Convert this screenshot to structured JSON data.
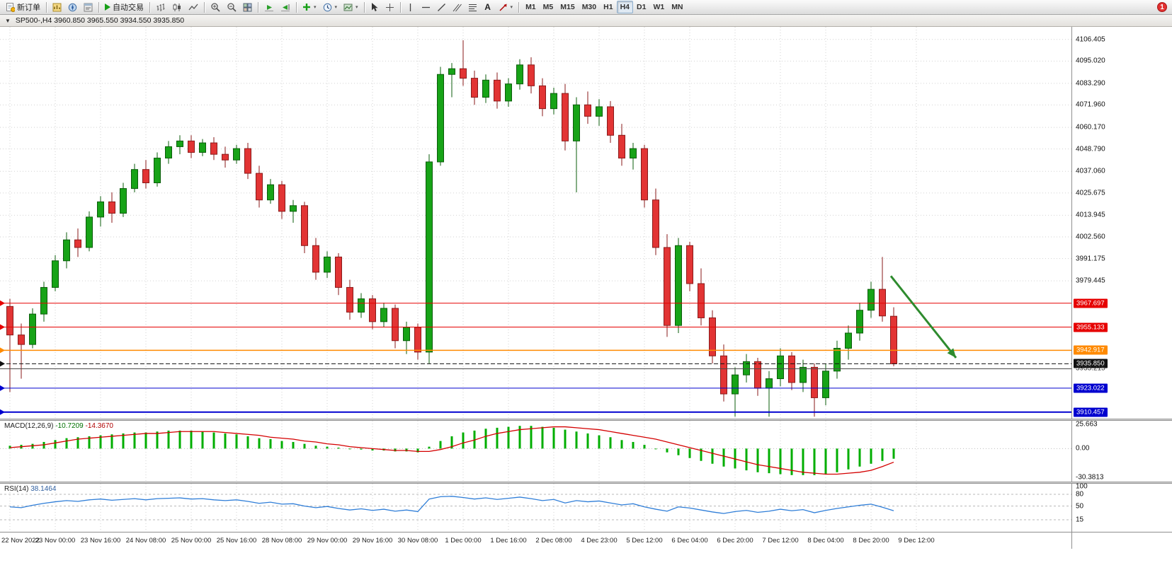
{
  "toolbar": {
    "new_order": "新订单",
    "auto_trading": "自动交易",
    "timeframes": [
      "M1",
      "M5",
      "M15",
      "M30",
      "H1",
      "H4",
      "D1",
      "W1",
      "MN"
    ],
    "active_timeframe": "H4",
    "notification_badge": "1",
    "icon_glyphs": {
      "dropdown": "▾",
      "collapse": "▼",
      "text_tool": "A"
    },
    "icon_names": [
      "new-order-icon",
      "market-watch-icon",
      "navigator-icon",
      "terminal-icon",
      "autotrading-play-icon",
      "bar-chart-icon",
      "candlestick-icon",
      "line-chart-icon",
      "zoom-in-icon",
      "zoom-out-icon",
      "tile-windows-icon",
      "auto-scroll-icon",
      "chart-shift-icon",
      "indicators-plus-icon",
      "periods-clock-icon",
      "templates-icon",
      "cursor-icon",
      "crosshair-icon",
      "vertical-line-icon",
      "horizontal-line-icon",
      "trendline-icon",
      "channel-icon",
      "fibonacci-icon",
      "text-tool-icon",
      "arrows-tool-icon"
    ]
  },
  "chart_header": {
    "collapse_icon": "▼",
    "title": "SP500-,H4 3960.850 3965.550 3934.550 3935.850"
  },
  "price_axis_labels": [
    "4106.405",
    "4095.020",
    "4083.290",
    "4071.960",
    "4060.170",
    "4048.790",
    "4037.060",
    "4025.675",
    "4013.945",
    "4002.560",
    "3991.175",
    "3979.445"
  ],
  "levels": [
    {
      "id": "resistance-upper",
      "price": 3967.697,
      "label": "3967.697",
      "color": "#e60000",
      "style": "solid",
      "width": 1,
      "badge": "filled",
      "edge_mark": true
    },
    {
      "id": "resistance-lower",
      "price": 3955.133,
      "label": "3955.133",
      "color": "#e60000",
      "style": "solid",
      "width": 1,
      "badge": "filled",
      "edge_mark": true
    },
    {
      "id": "orange-level",
      "price": 3942.917,
      "label": "3942.917",
      "color": "#ff8a00",
      "style": "solid",
      "width": 1.5,
      "badge": "filled",
      "edge_mark": true
    },
    {
      "id": "bid",
      "price": 3935.85,
      "label": "3935.850",
      "color": "#111111",
      "style": "dash",
      "width": 1,
      "badge": "filled",
      "edge_mark": true
    },
    {
      "id": "gray-support",
      "price": 3933.215,
      "label": "3933.215",
      "color": "#4a4a4a",
      "style": "solid",
      "width": 1,
      "badge": "plain",
      "edge_mark": false
    },
    {
      "id": "support-upper",
      "price": 3923.022,
      "label": "3923.022",
      "color": "#0000cf",
      "style": "solid",
      "width": 1,
      "badge": "filled",
      "edge_mark": true
    },
    {
      "id": "support-lower",
      "price": 3910.457,
      "label": "3910.457",
      "color": "#0000cf",
      "style": "solid",
      "width": 2,
      "badge": "filled",
      "edge_mark": true
    }
  ],
  "time_axis_labels": [
    "22 Nov 2022",
    "23 Nov 00:00",
    "23 Nov 16:00",
    "24 Nov 08:00",
    "25 Nov 00:00",
    "25 Nov 16:00",
    "28 Nov 08:00",
    "29 Nov 00:00",
    "29 Nov 16:00",
    "30 Nov 08:00",
    "1 Dec 00:00",
    "1 Dec 16:00",
    "2 Dec 08:00",
    "4 Dec 23:00",
    "5 Dec 12:00",
    "6 Dec 04:00",
    "6 Dec 20:00",
    "7 Dec 12:00",
    "8 Dec 04:00",
    "8 Dec 20:00",
    "9 Dec 12:00"
  ],
  "macd": {
    "label": "MACD(12,26,9)",
    "value_main": "-10.7209",
    "value_signal": "-14.3670",
    "scale": [
      "25.663",
      "0.00",
      "-30.3813"
    ]
  },
  "rsi": {
    "label": "RSI(14)",
    "value": "38.1464",
    "scale": [
      "100",
      "80",
      "50",
      "15"
    ]
  },
  "colors": {
    "candle_up": "#17a317",
    "candle_up_border": "#0b5d0b",
    "candle_down": "#e23434",
    "candle_down_border": "#8a1a1a",
    "grid": "#d2d2d2",
    "macd_histogram": "#00ae00",
    "macd_signal": "#d40000",
    "rsi_line": "#2f7ed8",
    "axis_text": "#111111",
    "background": "#ffffff"
  },
  "chart_data": {
    "type": "candlestick",
    "title": "SP500-,H4",
    "symbol": "SP500-",
    "timeframe": "H4",
    "current_quote": {
      "open": 3960.85,
      "high": 3965.55,
      "low": 3934.55,
      "close": 3935.85
    },
    "price_range": [
      3907,
      4113
    ],
    "ohlc": [
      [
        3966,
        3970,
        3921,
        3951
      ],
      [
        3951,
        3957,
        3928,
        3946
      ],
      [
        3946,
        3965,
        3944,
        3962
      ],
      [
        3962,
        3979,
        3958,
        3976
      ],
      [
        3976,
        3993,
        3974,
        3990
      ],
      [
        3990,
        4005,
        3986,
        4001
      ],
      [
        4001,
        4007,
        3992,
        3997
      ],
      [
        3997,
        4016,
        3995,
        4013
      ],
      [
        4013,
        4024,
        4008,
        4021
      ],
      [
        4021,
        4026,
        4010,
        4015
      ],
      [
        4015,
        4031,
        4013,
        4028
      ],
      [
        4028,
        4041,
        4026,
        4038
      ],
      [
        4038,
        4043,
        4028,
        4031
      ],
      [
        4031,
        4047,
        4029,
        4044
      ],
      [
        4044,
        4053,
        4041,
        4050
      ],
      [
        4050,
        4056,
        4046,
        4053
      ],
      [
        4053,
        4056,
        4044,
        4047
      ],
      [
        4047,
        4054,
        4045,
        4052
      ],
      [
        4052,
        4055,
        4043,
        4046
      ],
      [
        4046,
        4050,
        4039,
        4043
      ],
      [
        4043,
        4051,
        4041,
        4049
      ],
      [
        4049,
        4052,
        4033,
        4036
      ],
      [
        4036,
        4040,
        4018,
        4022
      ],
      [
        4022,
        4033,
        4020,
        4030
      ],
      [
        4030,
        4032,
        4012,
        4016
      ],
      [
        4016,
        4022,
        4010,
        4019
      ],
      [
        4019,
        4021,
        3994,
        3998
      ],
      [
        3998,
        4002,
        3980,
        3984
      ],
      [
        3984,
        3995,
        3981,
        3992
      ],
      [
        3992,
        3994,
        3972,
        3976
      ],
      [
        3976,
        3980,
        3959,
        3963
      ],
      [
        3963,
        3973,
        3960,
        3970
      ],
      [
        3970,
        3972,
        3954,
        3958
      ],
      [
        3958,
        3968,
        3955,
        3965
      ],
      [
        3965,
        3967,
        3944,
        3948
      ],
      [
        3948,
        3958,
        3941,
        3955
      ],
      [
        3955,
        3957,
        3938,
        3942
      ],
      [
        3942,
        4046,
        3936,
        4042
      ],
      [
        4042,
        4092,
        4040,
        4088
      ],
      [
        4088,
        4094,
        4076,
        4091
      ],
      [
        4091,
        4106,
        4082,
        4086
      ],
      [
        4086,
        4090,
        4072,
        4076
      ],
      [
        4076,
        4088,
        4073,
        4085
      ],
      [
        4085,
        4089,
        4070,
        4074
      ],
      [
        4074,
        4086,
        4071,
        4083
      ],
      [
        4083,
        4096,
        4080,
        4093
      ],
      [
        4093,
        4097,
        4078,
        4082
      ],
      [
        4082,
        4086,
        4066,
        4070
      ],
      [
        4070,
        4081,
        4067,
        4078
      ],
      [
        4078,
        4083,
        4048,
        4053
      ],
      [
        4053,
        4076,
        4026,
        4072
      ],
      [
        4072,
        4079,
        4062,
        4066
      ],
      [
        4066,
        4075,
        4061,
        4071
      ],
      [
        4071,
        4074,
        4052,
        4056
      ],
      [
        4056,
        4062,
        4040,
        4044
      ],
      [
        4044,
        4052,
        4038,
        4049
      ],
      [
        4049,
        4051,
        4018,
        4022
      ],
      [
        4022,
        4028,
        3993,
        3997
      ],
      [
        3997,
        4004,
        3950,
        3956
      ],
      [
        3956,
        4002,
        3952,
        3998
      ],
      [
        3998,
        4000,
        3974,
        3978
      ],
      [
        3978,
        3986,
        3956,
        3960
      ],
      [
        3960,
        3964,
        3936,
        3940
      ],
      [
        3940,
        3946,
        3916,
        3920
      ],
      [
        3920,
        3934,
        3908,
        3930
      ],
      [
        3930,
        3941,
        3926,
        3937
      ],
      [
        3937,
        3939,
        3919,
        3923
      ],
      [
        3923,
        3932,
        3908,
        3928
      ],
      [
        3928,
        3944,
        3924,
        3940
      ],
      [
        3940,
        3942,
        3922,
        3926
      ],
      [
        3926,
        3938,
        3921,
        3934
      ],
      [
        3934,
        3936,
        3908,
        3918
      ],
      [
        3918,
        3936,
        3914,
        3932
      ],
      [
        3932,
        3948,
        3928,
        3944
      ],
      [
        3944,
        3956,
        3938,
        3952
      ],
      [
        3952,
        3968,
        3948,
        3964
      ],
      [
        3964,
        3979,
        3960,
        3975
      ],
      [
        3975,
        3992,
        3958,
        3961
      ],
      [
        3960.85,
        3965.55,
        3934.55,
        3935.85
      ]
    ],
    "macd_histogram": [
      3,
      4,
      5,
      7,
      9,
      11,
      12,
      13,
      14,
      15,
      16,
      17,
      17,
      18,
      19,
      19,
      19,
      18,
      17,
      16,
      15,
      13,
      11,
      10,
      8,
      7,
      5,
      3,
      2,
      1,
      0,
      -1,
      -2,
      -2,
      -3,
      -3,
      -4,
      2,
      8,
      13,
      17,
      19,
      21,
      22,
      23,
      24,
      24,
      23,
      22,
      20,
      18,
      16,
      14,
      12,
      9,
      7,
      4,
      0,
      -4,
      -7,
      -10,
      -13,
      -16,
      -19,
      -21,
      -23,
      -25,
      -26,
      -27,
      -28,
      -28,
      -28,
      -27,
      -25,
      -22,
      -19,
      -16,
      -13,
      -10.72
    ],
    "macd_signal": [
      1,
      2,
      3,
      4,
      6,
      8,
      10,
      11,
      12,
      13,
      14,
      15,
      16,
      16,
      17,
      18,
      18,
      18,
      18,
      17,
      16,
      15,
      14,
      12,
      11,
      10,
      8,
      7,
      5,
      4,
      2,
      1,
      0,
      -1,
      -2,
      -2,
      -3,
      -3,
      -1,
      2,
      6,
      9,
      13,
      16,
      18,
      20,
      21,
      22,
      23,
      23,
      22,
      21,
      20,
      18,
      16,
      14,
      12,
      10,
      7,
      4,
      1,
      -2,
      -5,
      -8,
      -11,
      -14,
      -17,
      -19,
      -21,
      -23,
      -25,
      -26,
      -27,
      -27,
      -26,
      -25,
      -23,
      -19,
      -14.37
    ],
    "rsi_values": [
      48,
      46,
      52,
      57,
      61,
      64,
      62,
      66,
      68,
      65,
      67,
      69,
      66,
      69,
      70,
      71,
      68,
      69,
      66,
      64,
      66,
      62,
      57,
      60,
      55,
      56,
      50,
      46,
      49,
      44,
      40,
      43,
      39,
      42,
      37,
      40,
      36,
      68,
      74,
      75,
      72,
      68,
      71,
      67,
      70,
      73,
      69,
      64,
      67,
      58,
      64,
      61,
      63,
      58,
      53,
      56,
      48,
      42,
      37,
      48,
      45,
      40,
      35,
      31,
      36,
      39,
      34,
      37,
      42,
      38,
      41,
      33,
      39,
      44,
      48,
      52,
      55,
      47,
      38.1
    ],
    "annotation_arrow": {
      "from_index": 77.75,
      "from_price": 3982,
      "to_index": 83.5,
      "to_price": 3939,
      "color": "#2e8b2e"
    }
  }
}
